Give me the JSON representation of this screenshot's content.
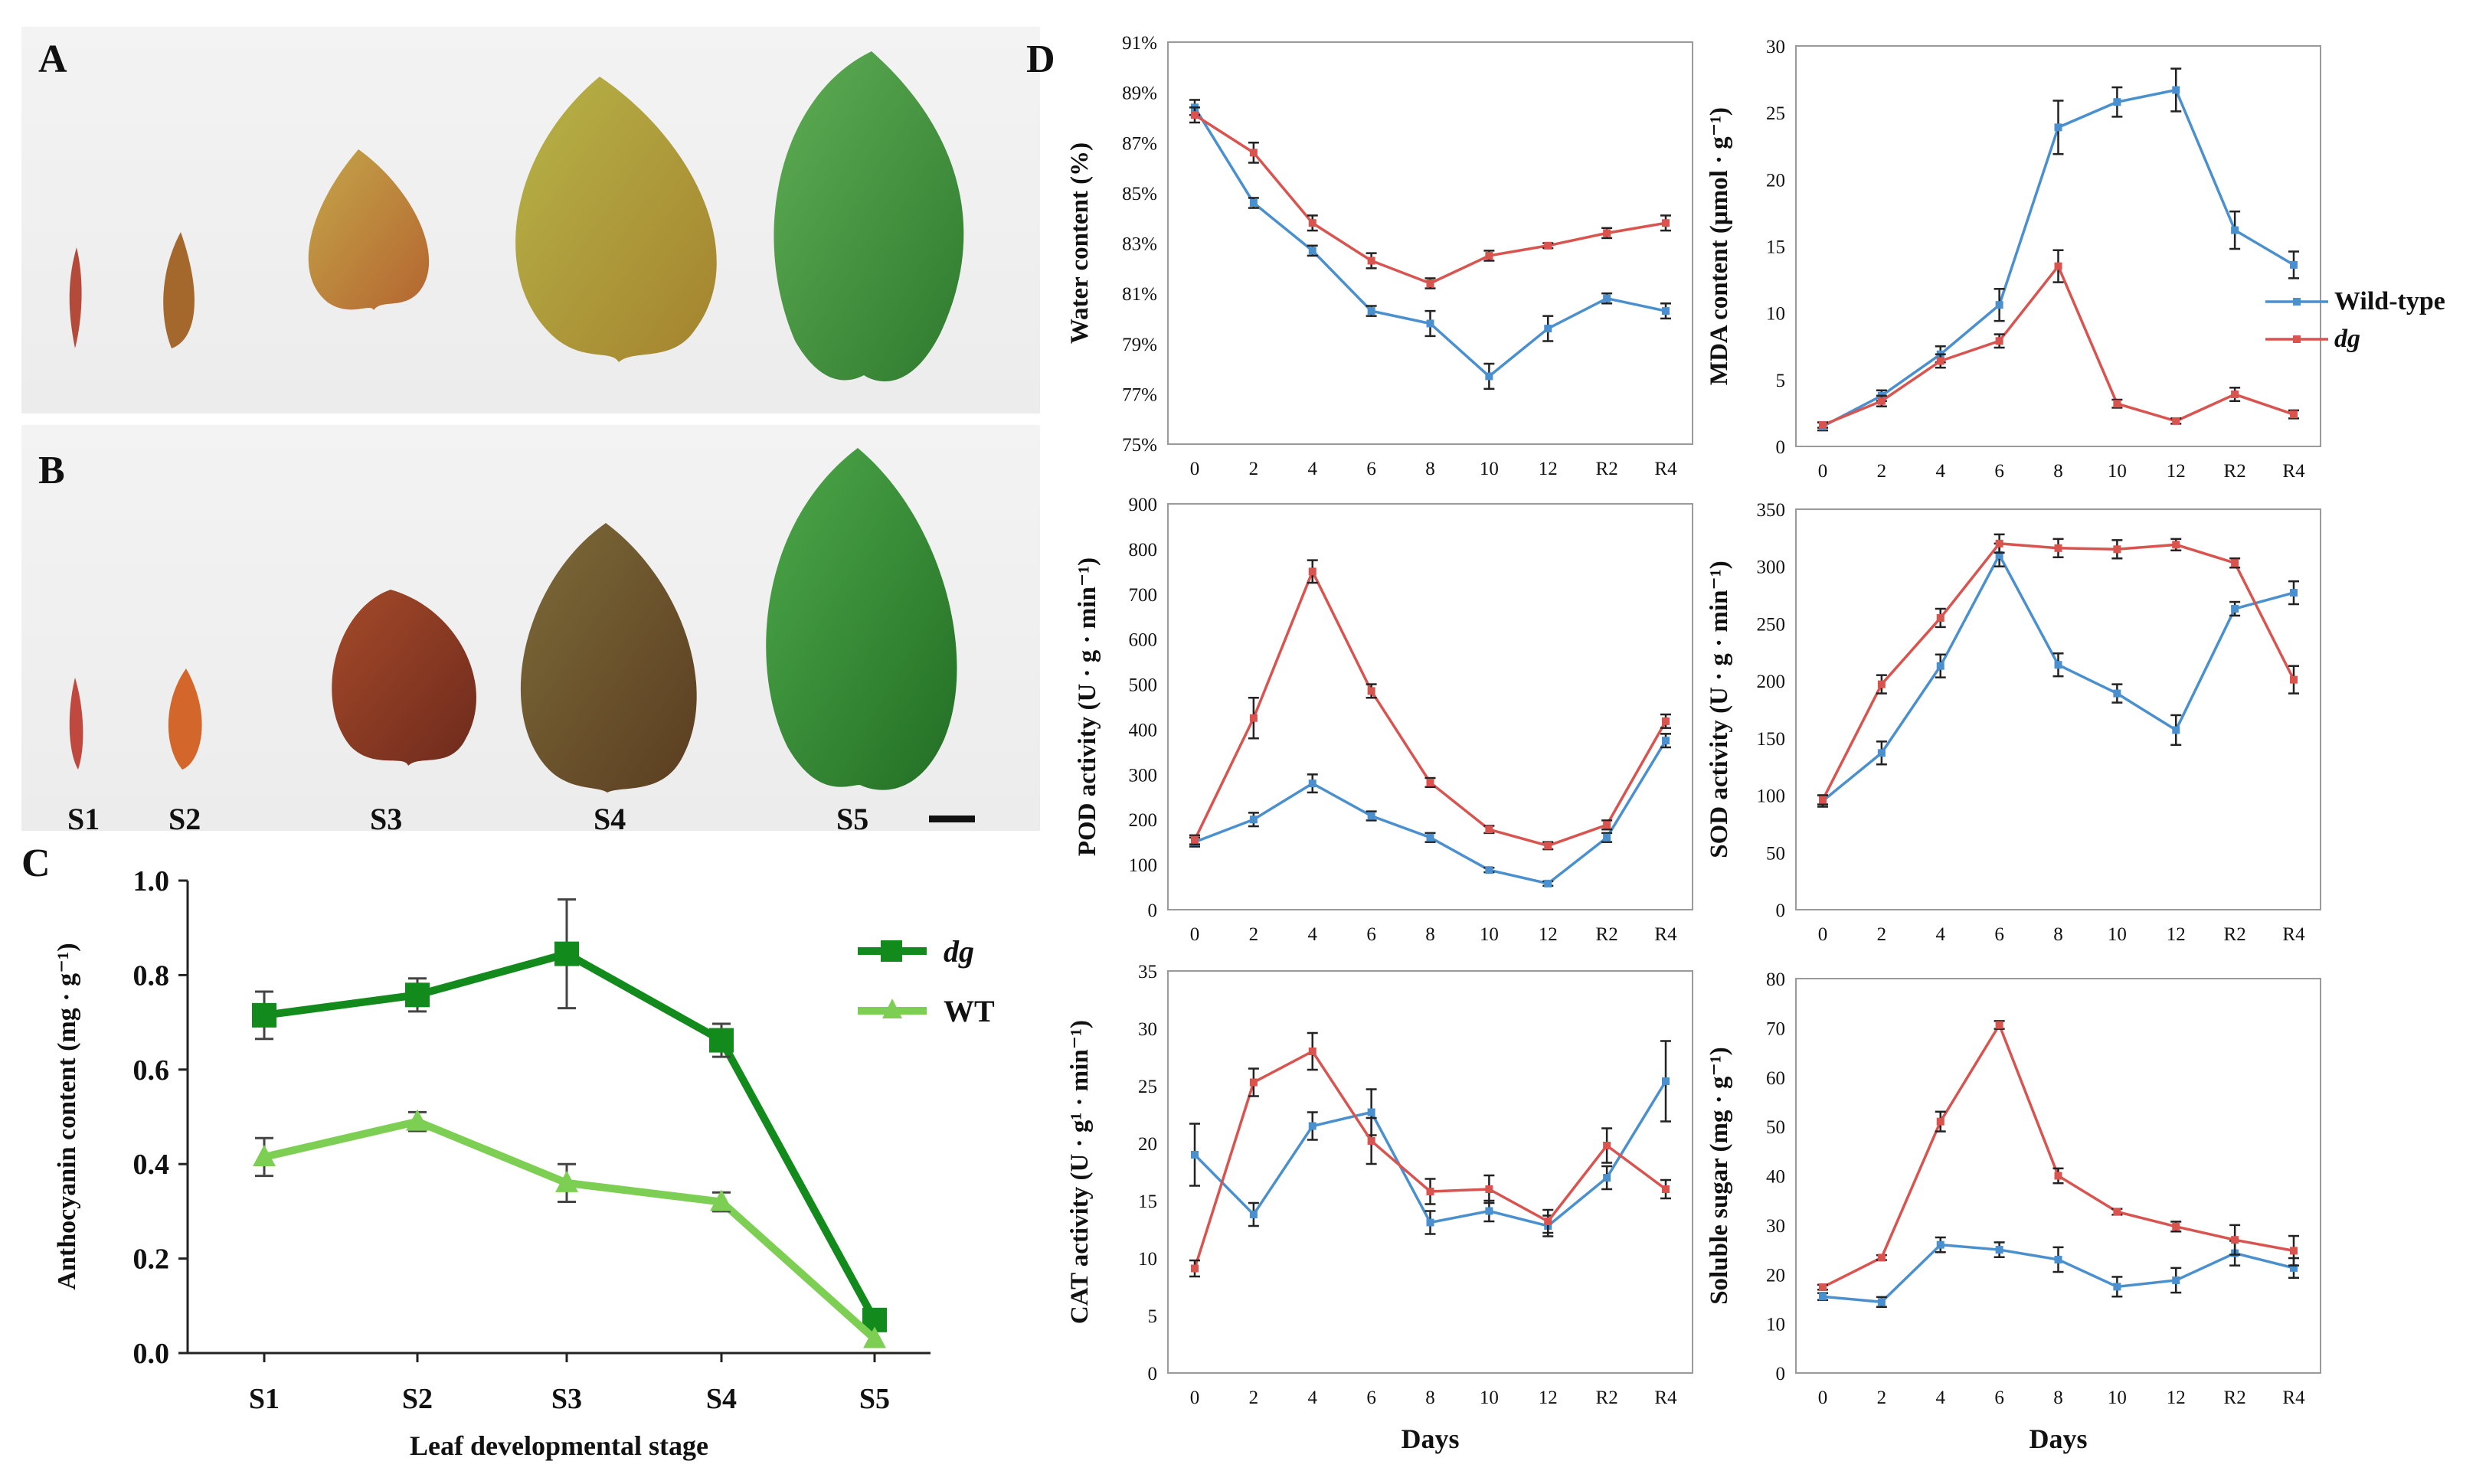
{
  "panels": {
    "A": "A",
    "B": "B",
    "C": "C",
    "D": "D"
  },
  "photo_labels": [
    "S1",
    "S2",
    "S3",
    "S4",
    "S5"
  ],
  "colors": {
    "dg_dark": "#138a1c",
    "wt_light": "#7ccf52",
    "wild_blue": "#4a90cf",
    "dg_red": "#d9534f"
  },
  "chart_data": [
    {
      "id": "C",
      "type": "line",
      "title": "",
      "xlabel": "Leaf developmental stage",
      "ylabel": "Anthocyanin content (mg · g⁻¹)",
      "categories": [
        "S1",
        "S2",
        "S3",
        "S4",
        "S5"
      ],
      "ylim": [
        0,
        1.0
      ],
      "yticks": [
        "0.0",
        "0.2",
        "0.4",
        "0.6",
        "0.8",
        "1.0"
      ],
      "series": [
        {
          "name": "dg",
          "values": [
            0.715,
            0.758,
            0.845,
            0.662,
            0.07
          ],
          "errors": [
            0.05,
            0.035,
            0.115,
            0.035,
            0.0
          ]
        },
        {
          "name": "WT",
          "values": [
            0.415,
            0.49,
            0.36,
            0.32,
            0.03
          ],
          "errors": [
            0.04,
            0.02,
            0.04,
            0.02,
            0.0
          ]
        }
      ]
    },
    {
      "id": "water",
      "type": "line",
      "ylabel": "Water content (%)",
      "categories": [
        "0",
        "2",
        "4",
        "6",
        "8",
        "10",
        "12",
        "R2",
        "R4"
      ],
      "ylim": [
        75,
        91
      ],
      "yticks": [
        "75%",
        "77%",
        "79%",
        "81%",
        "83%",
        "85%",
        "87%",
        "89%",
        "91%"
      ],
      "series": [
        {
          "name": "Wild-type",
          "values": [
            88.4,
            84.6,
            82.7,
            80.3,
            79.8,
            77.7,
            79.6,
            80.8,
            80.3
          ],
          "errors": [
            0.3,
            0.2,
            0.2,
            0.2,
            0.5,
            0.5,
            0.5,
            0.2,
            0.3
          ]
        },
        {
          "name": "dg",
          "values": [
            88.1,
            86.6,
            83.8,
            82.3,
            81.4,
            82.5,
            82.9,
            83.4,
            83.8
          ],
          "errors": [
            0.3,
            0.4,
            0.3,
            0.3,
            0.2,
            0.2,
            0.1,
            0.2,
            0.3
          ]
        }
      ]
    },
    {
      "id": "mda",
      "type": "line",
      "ylabel": "MDA content (μmol · g⁻¹)",
      "categories": [
        "0",
        "2",
        "4",
        "6",
        "8",
        "10",
        "12",
        "R2",
        "R4"
      ],
      "ylim": [
        0,
        30
      ],
      "yticks": [
        "0",
        "5",
        "10",
        "15",
        "20",
        "25",
        "30"
      ],
      "legend": [
        "Wild-type",
        "dg"
      ],
      "series": [
        {
          "name": "Wild-type",
          "values": [
            1.5,
            3.8,
            6.9,
            10.6,
            23.9,
            25.8,
            26.7,
            16.2,
            13.6
          ],
          "errors": [
            0.3,
            0.4,
            0.6,
            1.2,
            2.0,
            1.1,
            1.6,
            1.4,
            1.0
          ]
        },
        {
          "name": "dg",
          "values": [
            1.6,
            3.4,
            6.4,
            7.9,
            13.5,
            3.2,
            1.9,
            3.9,
            2.4
          ],
          "errors": [
            0.2,
            0.4,
            0.5,
            0.5,
            1.2,
            0.3,
            0.2,
            0.5,
            0.3
          ]
        }
      ]
    },
    {
      "id": "pod",
      "type": "line",
      "ylabel": "POD activity (U · g · min⁻¹)",
      "categories": [
        "0",
        "2",
        "4",
        "6",
        "8",
        "10",
        "12",
        "R2",
        "R4"
      ],
      "ylim": [
        0,
        900
      ],
      "yticks": [
        "0",
        "100",
        "200",
        "300",
        "400",
        "500",
        "600",
        "700",
        "800",
        "900"
      ],
      "series": [
        {
          "name": "Wild-type",
          "values": [
            150,
            200,
            280,
            208,
            160,
            88,
            58,
            160,
            375
          ],
          "errors": [
            10,
            15,
            20,
            10,
            10,
            5,
            5,
            10,
            15
          ]
        },
        {
          "name": "dg",
          "values": [
            155,
            425,
            750,
            485,
            282,
            178,
            142,
            188,
            418
          ],
          "errors": [
            10,
            45,
            25,
            15,
            10,
            8,
            8,
            10,
            15
          ]
        }
      ]
    },
    {
      "id": "sod",
      "type": "line",
      "ylabel": "SOD activity (U · g · min⁻¹)",
      "categories": [
        "0",
        "2",
        "4",
        "6",
        "8",
        "10",
        "12",
        "R2",
        "R4"
      ],
      "ylim": [
        0,
        350
      ],
      "yticks": [
        "0",
        "50",
        "100",
        "150",
        "200",
        "250",
        "300",
        "350"
      ],
      "series": [
        {
          "name": "Wild-type",
          "values": [
            95,
            137,
            213,
            310,
            214,
            189,
            157,
            263,
            277
          ],
          "errors": [
            5,
            10,
            10,
            10,
            10,
            8,
            13,
            6,
            10
          ]
        },
        {
          "name": "dg",
          "values": [
            96,
            197,
            255,
            320,
            316,
            315,
            319,
            303,
            201
          ],
          "errors": [
            4,
            8,
            8,
            8,
            8,
            8,
            5,
            4,
            12
          ]
        }
      ]
    },
    {
      "id": "cat",
      "type": "line",
      "ylabel": "CAT activity (U · g¹ · min⁻¹)",
      "xlabel": "Days",
      "categories": [
        "0",
        "2",
        "4",
        "6",
        "8",
        "10",
        "12",
        "R2",
        "R4"
      ],
      "ylim": [
        0,
        35
      ],
      "yticks": [
        "0",
        "5",
        "10",
        "15",
        "20",
        "25",
        "30",
        "35"
      ],
      "series": [
        {
          "name": "Wild-type",
          "values": [
            19,
            13.8,
            21.5,
            22.7,
            13.1,
            14.1,
            12.8,
            17,
            25.4
          ],
          "errors": [
            2.7,
            1.0,
            1.2,
            2.0,
            1.0,
            0.9,
            0.9,
            1.0,
            3.5
          ]
        },
        {
          "name": "dg",
          "values": [
            9.1,
            25.3,
            28,
            20.2,
            15.8,
            16,
            13.2,
            19.8,
            16
          ],
          "errors": [
            0.7,
            1.2,
            1.6,
            2.0,
            1.1,
            1.2,
            1.0,
            1.5,
            0.8
          ]
        }
      ]
    },
    {
      "id": "sugar",
      "type": "line",
      "ylabel": "Soluble sugar (mg · g⁻¹)",
      "xlabel": "Days",
      "categories": [
        "0",
        "2",
        "4",
        "6",
        "8",
        "10",
        "12",
        "R2",
        "R4"
      ],
      "ylim": [
        0,
        80
      ],
      "yticks": [
        "0",
        "10",
        "20",
        "30",
        "40",
        "50",
        "60",
        "70",
        "80"
      ],
      "series": [
        {
          "name": "Wild-type",
          "values": [
            15.5,
            14.4,
            26,
            25,
            23,
            17.5,
            18.8,
            24.3,
            21.3
          ],
          "errors": [
            0.7,
            1.0,
            1.5,
            1.5,
            2.5,
            2.0,
            2.5,
            2.5,
            2.0
          ]
        },
        {
          "name": "dg",
          "values": [
            17.4,
            23.4,
            51,
            70.6,
            40,
            32.7,
            29.7,
            27,
            24.8
          ],
          "errors": [
            0.5,
            0.5,
            2.0,
            0.8,
            1.5,
            0.6,
            1.0,
            3.0,
            3.0
          ]
        }
      ]
    }
  ]
}
